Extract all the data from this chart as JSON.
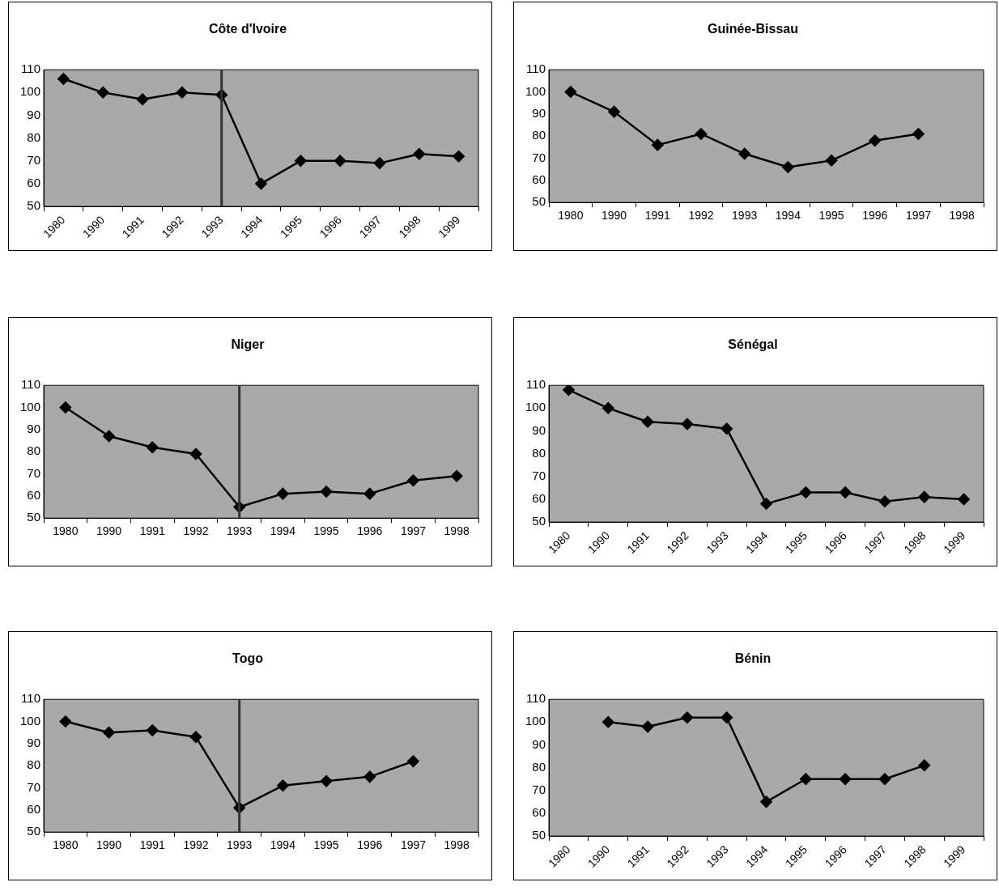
{
  "chart_data": [
    {
      "type": "line",
      "title": "Côte d'Ivoire",
      "categories": [
        "1980",
        "1990",
        "1991",
        "1992",
        "1993",
        "1994",
        "1995",
        "1996",
        "1997",
        "1998",
        "1999"
      ],
      "series": [
        {
          "color": "#000000",
          "values": [
            106,
            100,
            97,
            100,
            99,
            60,
            70,
            70,
            69,
            73,
            72
          ]
        }
      ],
      "ylim": [
        50,
        110
      ],
      "yticks": [
        50,
        60,
        70,
        80,
        90,
        100,
        110
      ],
      "grid": false,
      "legend": false,
      "marker": "diamond",
      "ref_lines": [
        {
          "axis": "x",
          "value": "1993",
          "color": "#333333"
        }
      ]
    },
    {
      "type": "line",
      "title": "Guinée-Bissau",
      "categories": [
        "1980",
        "1990",
        "1991",
        "1992",
        "1993",
        "1994",
        "1995",
        "1996",
        "1997",
        "1998"
      ],
      "series": [
        {
          "color": "#000000",
          "values": [
            100,
            91,
            76,
            81,
            72,
            66,
            69,
            78,
            81,
            null
          ]
        }
      ],
      "ylim": [
        50,
        110
      ],
      "yticks": [
        50,
        60,
        70,
        80,
        90,
        100,
        110
      ],
      "grid": false,
      "legend": false,
      "marker": "diamond"
    },
    {
      "type": "line",
      "title": "Niger",
      "categories": [
        "1980",
        "1990",
        "1991",
        "1992",
        "1993",
        "1994",
        "1995",
        "1996",
        "1997",
        "1998"
      ],
      "series": [
        {
          "color": "#000000",
          "values": [
            100,
            87,
            82,
            79,
            55,
            61,
            62,
            61,
            67,
            69
          ]
        }
      ],
      "ylim": [
        50,
        110
      ],
      "yticks": [
        50,
        60,
        70,
        80,
        90,
        100,
        110
      ],
      "grid": false,
      "legend": false,
      "marker": "diamond",
      "ref_lines": [
        {
          "axis": "x",
          "value": "1993",
          "color": "#333333"
        }
      ]
    },
    {
      "type": "line",
      "title": "Sénégal",
      "categories": [
        "1980",
        "1990",
        "1991",
        "1992",
        "1993",
        "1994",
        "1995",
        "1996",
        "1997",
        "1998",
        "1999"
      ],
      "series": [
        {
          "color": "#000000",
          "values": [
            108,
            100,
            94,
            93,
            91,
            58,
            63,
            63,
            59,
            61,
            60
          ]
        }
      ],
      "ylim": [
        50,
        110
      ],
      "yticks": [
        50,
        60,
        70,
        80,
        90,
        100,
        110
      ],
      "grid": false,
      "legend": false,
      "marker": "diamond"
    },
    {
      "type": "line",
      "title": "Togo",
      "categories": [
        "1980",
        "1990",
        "1991",
        "1992",
        "1993",
        "1994",
        "1995",
        "1996",
        "1997",
        "1998"
      ],
      "series": [
        {
          "color": "#000000",
          "values": [
            100,
            95,
            96,
            93,
            61,
            71,
            73,
            75,
            82,
            null
          ]
        }
      ],
      "ylim": [
        50,
        110
      ],
      "yticks": [
        50,
        60,
        70,
        80,
        90,
        100,
        110
      ],
      "grid": false,
      "legend": false,
      "marker": "diamond",
      "ref_lines": [
        {
          "axis": "x",
          "value": "1993",
          "color": "#333333"
        }
      ]
    },
    {
      "type": "line",
      "title": "Bénin",
      "categories": [
        "1980",
        "1990",
        "1991",
        "1992",
        "1993",
        "1994",
        "1995",
        "1996",
        "1997",
        "1998",
        "1999"
      ],
      "series": [
        {
          "color": "#000000",
          "values": [
            null,
            100,
            98,
            102,
            102,
            65,
            75,
            75,
            75,
            81,
            null
          ]
        }
      ],
      "ylim": [
        50,
        110
      ],
      "yticks": [
        50,
        60,
        70,
        80,
        90,
        100,
        110
      ],
      "grid": false,
      "legend": false,
      "marker": "diamond"
    }
  ]
}
